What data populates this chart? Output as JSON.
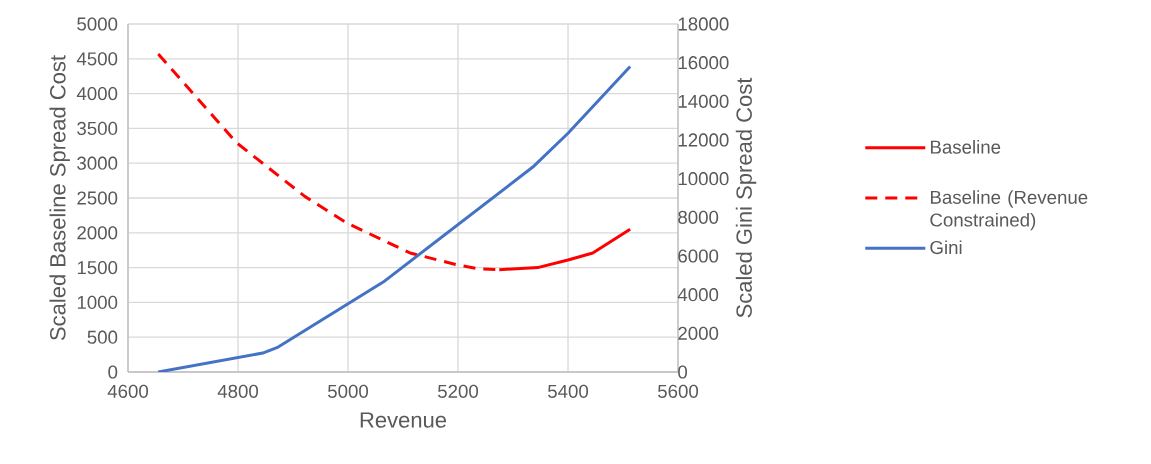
{
  "chart_data": {
    "type": "line",
    "xlabel": "Revenue",
    "ylabel": "Scaled Baseline Spread Cost",
    "y2label": "Scaled Gini Spread Cost",
    "xlim": [
      4600,
      5600
    ],
    "xticks": [
      4600,
      4800,
      5000,
      5200,
      5400,
      5600
    ],
    "ylim": [
      0,
      5000
    ],
    "yticks": [
      0,
      500,
      1000,
      1500,
      2000,
      2500,
      3000,
      3500,
      4000,
      4500,
      5000
    ],
    "y2lim": [
      0,
      18000
    ],
    "y2ticks": [
      0,
      2000,
      4000,
      6000,
      8000,
      10000,
      12000,
      14000,
      16000,
      18000
    ],
    "grid": true,
    "legend": "right",
    "series": [
      {
        "name": "Baseline",
        "color": "#ff0000",
        "line_style": "solid",
        "axis": "y",
        "x": [
          5275,
          5345,
          5400,
          5445,
          5513
        ],
        "values": [
          1470,
          1500,
          1610,
          1710,
          2050
        ]
      },
      {
        "name": "Baseline (Revenue Constrained)",
        "color": "#ff0000",
        "line_style": "dashed",
        "axis": "y",
        "x": [
          4655,
          4798,
          4922,
          4998,
          5113,
          5198,
          5240,
          5275
        ],
        "values": [
          4570,
          3290,
          2520,
          2140,
          1710,
          1540,
          1480,
          1470
        ]
      },
      {
        "name": "Gini",
        "color": "#4472c4",
        "line_style": "solid",
        "axis": "y2",
        "x": [
          4655,
          4845,
          4873,
          5064,
          5336,
          5400,
          5513
        ],
        "values": [
          0,
          980,
          1290,
          4650,
          10600,
          12350,
          15800
        ]
      }
    ]
  }
}
